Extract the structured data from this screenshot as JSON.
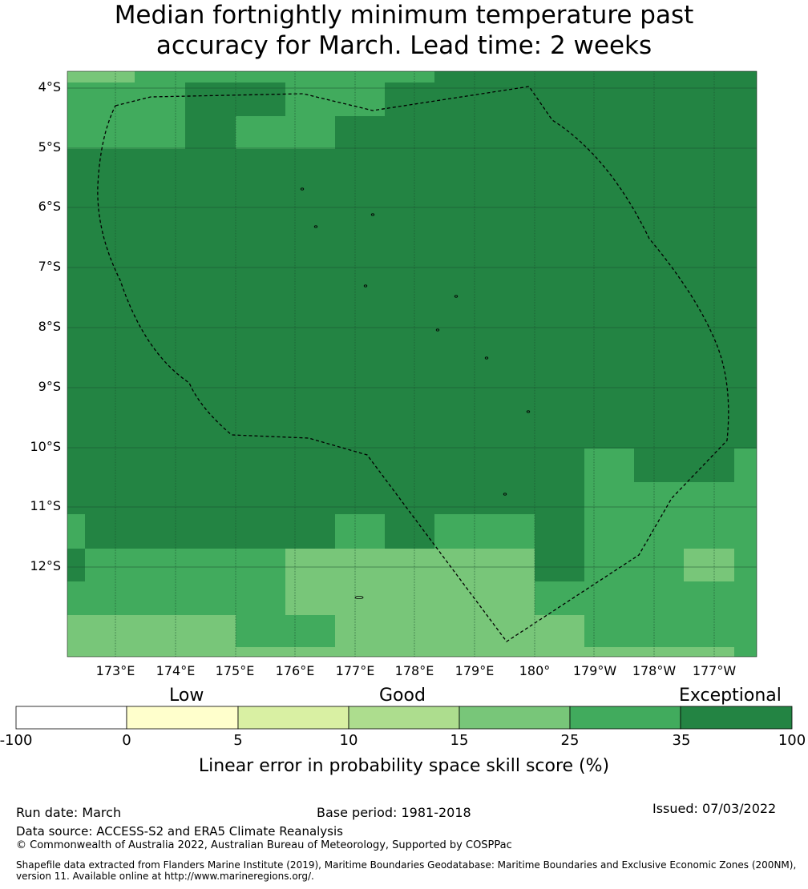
{
  "title": {
    "line1": "Median fortnightly minimum temperature past",
    "line2": "accuracy for March. Lead time: 2 weeks"
  },
  "map": {
    "lat_labels": [
      "4°S",
      "5°S",
      "6°S",
      "7°S",
      "8°S",
      "9°S",
      "10°S",
      "11°S",
      "12°S"
    ],
    "lon_labels": [
      "173°E",
      "174°E",
      "175°E",
      "176°E",
      "177°E",
      "178°E",
      "179°E",
      "180°",
      "179°W",
      "178°W",
      "177°W"
    ],
    "lon_range": [
      172.2,
      183.7
    ],
    "lat_range": [
      -13.4,
      -3.63
    ],
    "grid_color": "#1a4d2e",
    "boundary_style": "dashed",
    "grid_cells": {
      "description": "Skill-score category per cell, columns west→east",
      "categories": [
        "15-25",
        "25-35",
        "35-100"
      ],
      "colors": {
        "15-25": "#78c679",
        "25-35": "#41ab5d",
        "35-100": "#238443"
      }
    }
  },
  "colorbar": {
    "category_labels": [
      "Low",
      "Good",
      "Exceptional"
    ],
    "ticks": [
      "-100",
      "0",
      "5",
      "10",
      "15",
      "25",
      "35",
      "100"
    ],
    "colors": [
      "#ffffff",
      "#ffffcc",
      "#d9f0a3",
      "#addd8e",
      "#78c679",
      "#41ab5d",
      "#238443"
    ],
    "label": "Linear error in probability space skill score (%)"
  },
  "footer": {
    "run_date": "Run date: March",
    "base_period": "Base period: 1981-2018",
    "issued": "Issued: 07/03/2022",
    "data_source": "Data source: ACCESS-S2 and ERA5 Climate Reanalysis",
    "copyright": "© Commonwealth of Australia 2022, Australian Bureau of Meteorology, Supported by COSPPac",
    "shapefile": "Shapefile data extracted from Flanders Marine Institute (2019), Maritime Boundaries Geodatabase: Maritime Boundaries and Exclusive Economic Zones (200NM), version 11. Available online at http://www.marineregions.org/."
  }
}
